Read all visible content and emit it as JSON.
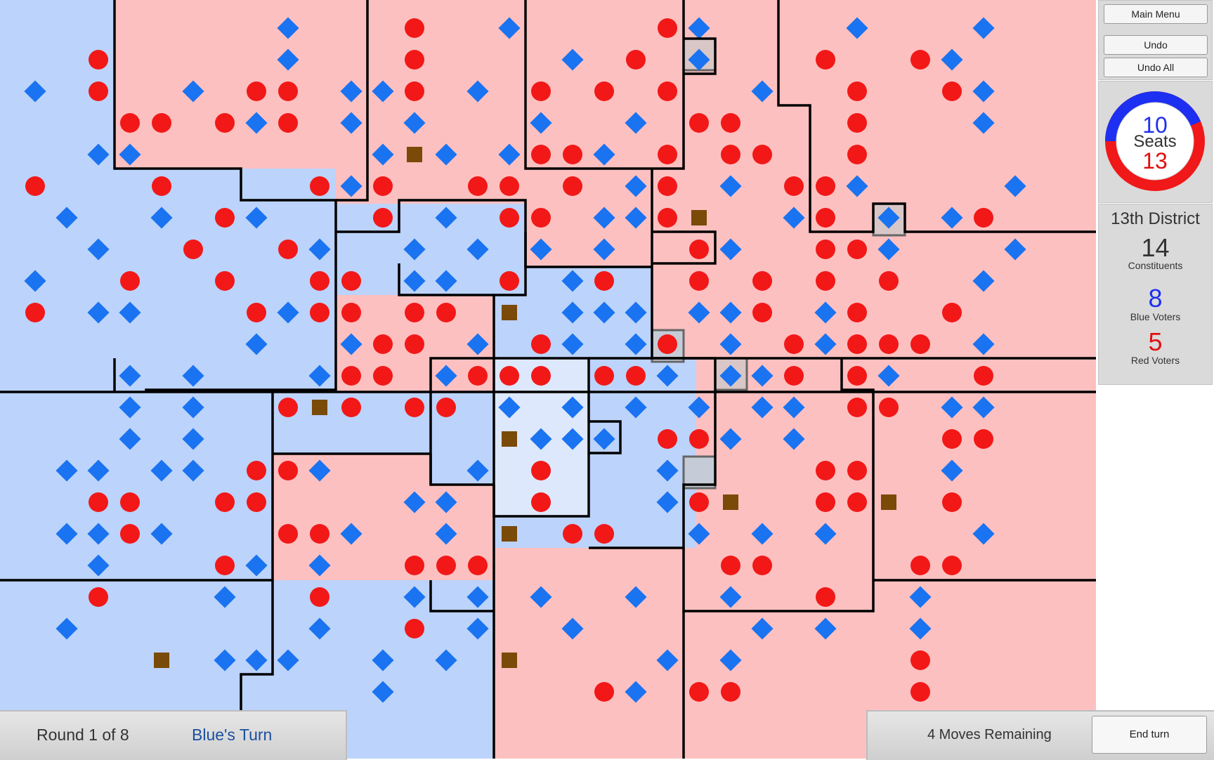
{
  "menu": {
    "main_menu": "Main Menu",
    "undo": "Undo",
    "undo_all": "Undo All"
  },
  "seats": {
    "blue": "10",
    "label": "Seats",
    "red": "13",
    "blue_count": 10,
    "red_count": 13
  },
  "district": {
    "name": "13th District",
    "constituents": "14",
    "constituents_label": "Constituents",
    "blue": "8",
    "blue_label": "Blue Voters",
    "red": "5",
    "red_label": "Red Voters"
  },
  "status": {
    "round": "Round 1 of 8",
    "turn": "Blue's Turn",
    "moves": "4 Moves Remaining",
    "end_turn": "End turn"
  },
  "colors": {
    "blue_district": "#bcd3fb",
    "red_district": "#fdc0c0",
    "blue_voter": "#1a73f0",
    "red_voter": "#f21818",
    "neutral": "#7a4a08"
  },
  "voter_icons": {
    "blue": "diamond",
    "red": "circle",
    "neutral": "square"
  }
}
